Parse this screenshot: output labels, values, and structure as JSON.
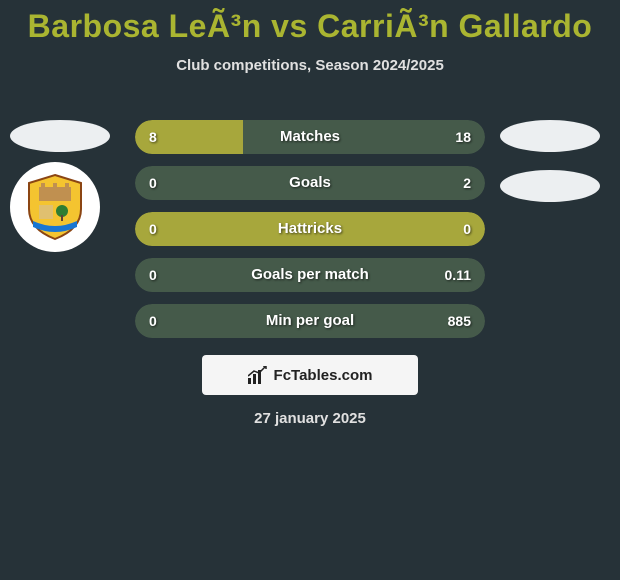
{
  "title": "Barbosa LeÃ³n vs CarriÃ³n Gallardo",
  "subtitle": "Club competitions, Season 2024/2025",
  "date": "27 january 2025",
  "footer_brand": "FcTables.com",
  "colors": {
    "background": "#263238",
    "title": "#aab531",
    "left_player": "#a7a73c",
    "right_player": "#455a4a",
    "bar_full": "#a7a73c",
    "oval": "#eceff1"
  },
  "bars": [
    {
      "label": "Matches",
      "left": "8",
      "right": "18",
      "left_pct": 30.8,
      "left_color": "#a7a73c",
      "right_color": "#455a4a"
    },
    {
      "label": "Goals",
      "left": "0",
      "right": "2",
      "left_pct": 0,
      "left_color": "#a7a73c",
      "right_color": "#455a4a"
    },
    {
      "label": "Hattricks",
      "left": "0",
      "right": "0",
      "left_pct": 100,
      "left_color": "#a7a73c",
      "right_color": "#a7a73c"
    },
    {
      "label": "Goals per match",
      "left": "0",
      "right": "0.11",
      "left_pct": 0,
      "left_color": "#a7a73c",
      "right_color": "#455a4a"
    },
    {
      "label": "Min per goal",
      "left": "0",
      "right": "885",
      "left_pct": 0,
      "left_color": "#a7a73c",
      "right_color": "#455a4a"
    }
  ],
  "crest": {
    "shield_fill": "#f4c430",
    "shield_stroke": "#8b4513",
    "castle_fill": "#c09050",
    "tree_fill": "#2e7d32",
    "banner_fill": "#1976d2"
  }
}
